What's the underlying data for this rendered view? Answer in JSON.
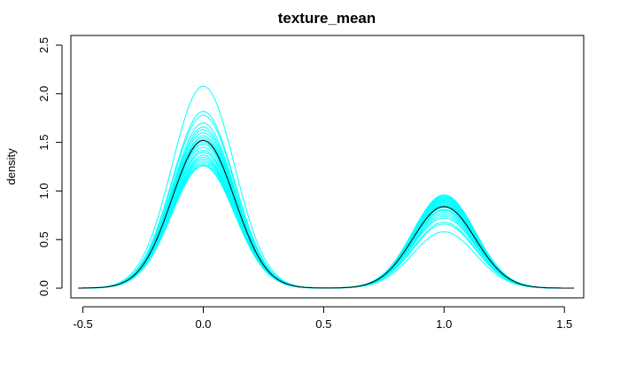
{
  "chart_data": {
    "type": "line",
    "title": "texture_mean",
    "xlabel": "",
    "ylabel": "density",
    "xlim": [
      -0.55,
      1.58
    ],
    "ylim": [
      -0.1,
      2.6
    ],
    "xticks": [
      -0.5,
      0.0,
      0.5,
      1.0,
      1.5
    ],
    "xtick_labels": [
      "-0.5",
      "0.0",
      "0.5",
      "1.0",
      "1.5"
    ],
    "yticks": [
      0.0,
      0.5,
      1.0,
      1.5,
      2.0,
      2.5
    ],
    "ytick_labels": [
      "0.0",
      "0.5",
      "1.0",
      "1.5",
      "2.0",
      "2.5"
    ],
    "x_range": [
      -0.52,
      1.54
    ],
    "colors": {
      "bootstrap": "#00ffff",
      "main": "#000000"
    },
    "curve_model": "mixture of two normal kernels at x=0 and x=1",
    "series": [
      {
        "role": "main",
        "color": "#000000",
        "peak_at_0": 1.52,
        "peak_at_1": 0.84
      },
      {
        "role": "bootstrap",
        "color": "#00ffff",
        "peak_at_0": 2.08,
        "peak_at_1": 0.58
      },
      {
        "role": "bootstrap",
        "color": "#00ffff",
        "peak_at_0": 1.82,
        "peak_at_1": 0.66
      },
      {
        "role": "bootstrap",
        "color": "#00ffff",
        "peak_at_0": 1.78,
        "peak_at_1": 0.68
      },
      {
        "role": "bootstrap",
        "color": "#00ffff",
        "peak_at_0": 1.7,
        "peak_at_1": 0.72
      },
      {
        "role": "bootstrap",
        "color": "#00ffff",
        "peak_at_0": 1.66,
        "peak_at_1": 0.74
      },
      {
        "role": "bootstrap",
        "color": "#00ffff",
        "peak_at_0": 1.63,
        "peak_at_1": 0.76
      },
      {
        "role": "bootstrap",
        "color": "#00ffff",
        "peak_at_0": 1.6,
        "peak_at_1": 0.78
      },
      {
        "role": "bootstrap",
        "color": "#00ffff",
        "peak_at_0": 1.57,
        "peak_at_1": 0.8
      },
      {
        "role": "bootstrap",
        "color": "#00ffff",
        "peak_at_0": 1.55,
        "peak_at_1": 0.81
      },
      {
        "role": "bootstrap",
        "color": "#00ffff",
        "peak_at_0": 1.53,
        "peak_at_1": 0.83
      },
      {
        "role": "bootstrap",
        "color": "#00ffff",
        "peak_at_0": 1.5,
        "peak_at_1": 0.85
      },
      {
        "role": "bootstrap",
        "color": "#00ffff",
        "peak_at_0": 1.48,
        "peak_at_1": 0.86
      },
      {
        "role": "bootstrap",
        "color": "#00ffff",
        "peak_at_0": 1.45,
        "peak_at_1": 0.87
      },
      {
        "role": "bootstrap",
        "color": "#00ffff",
        "peak_at_0": 1.42,
        "peak_at_1": 0.88
      },
      {
        "role": "bootstrap",
        "color": "#00ffff",
        "peak_at_0": 1.4,
        "peak_at_1": 0.89
      },
      {
        "role": "bootstrap",
        "color": "#00ffff",
        "peak_at_0": 1.37,
        "peak_at_1": 0.9
      },
      {
        "role": "bootstrap",
        "color": "#00ffff",
        "peak_at_0": 1.35,
        "peak_at_1": 0.91
      },
      {
        "role": "bootstrap",
        "color": "#00ffff",
        "peak_at_0": 1.33,
        "peak_at_1": 0.92
      },
      {
        "role": "bootstrap",
        "color": "#00ffff",
        "peak_at_0": 1.31,
        "peak_at_1": 0.93
      },
      {
        "role": "bootstrap",
        "color": "#00ffff",
        "peak_at_0": 1.29,
        "peak_at_1": 0.94
      },
      {
        "role": "bootstrap",
        "color": "#00ffff",
        "peak_at_0": 1.27,
        "peak_at_1": 0.95
      },
      {
        "role": "bootstrap",
        "color": "#00ffff",
        "peak_at_0": 1.26,
        "peak_at_1": 0.96
      }
    ]
  }
}
